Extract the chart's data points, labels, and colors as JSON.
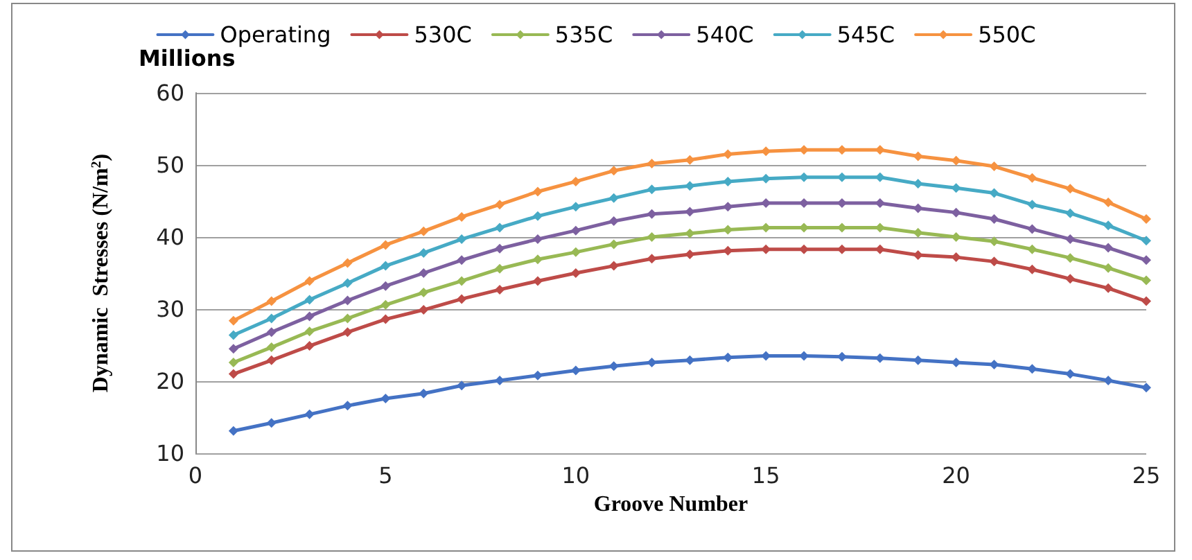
{
  "chart_data": {
    "type": "line",
    "xlabel": "Groove Number",
    "ylabel": "Dynamic  Stresses (N/m$^{2}$)",
    "annotations": [
      "Millions"
    ],
    "x": [
      1,
      2,
      3,
      4,
      5,
      6,
      7,
      8,
      9,
      10,
      11,
      12,
      13,
      14,
      15,
      16,
      17,
      18,
      19,
      20,
      21,
      22,
      23,
      24,
      25
    ],
    "xlim": [
      0,
      25
    ],
    "xticks": [
      0,
      5,
      10,
      15,
      20,
      25
    ],
    "ylim": [
      10,
      60
    ],
    "yticks": [
      10,
      20,
      30,
      40,
      50,
      60
    ],
    "grid": "y",
    "legend": "top",
    "marker": "diamond",
    "line_style": "solid",
    "series": [
      {
        "name": "Operating",
        "color": "#4472c4",
        "values": [
          13.1,
          14.2,
          15.4,
          16.6,
          17.6,
          18.3,
          19.4,
          20.1,
          20.8,
          21.5,
          22.1,
          22.6,
          22.9,
          23.3,
          23.5,
          23.5,
          23.4,
          23.2,
          22.9,
          22.6,
          22.3,
          21.7,
          21.0,
          20.1,
          19.1
        ]
      },
      {
        "name": "530C",
        "color": "#be4b48",
        "values": [
          21.0,
          22.9,
          24.9,
          26.8,
          28.6,
          29.9,
          31.4,
          32.7,
          33.9,
          35.0,
          36.0,
          37.0,
          37.6,
          38.1,
          38.3,
          38.3,
          38.3,
          38.3,
          37.5,
          37.2,
          36.6,
          35.5,
          34.2,
          32.9,
          31.1
        ]
      },
      {
        "name": "535C",
        "color": "#98b954",
        "values": [
          22.6,
          24.7,
          26.9,
          28.7,
          30.6,
          32.3,
          33.9,
          35.6,
          36.9,
          37.9,
          39.0,
          40.0,
          40.5,
          41.0,
          41.3,
          41.3,
          41.3,
          41.3,
          40.6,
          40.0,
          39.4,
          38.3,
          37.1,
          35.7,
          34.0
        ]
      },
      {
        "name": "540C",
        "color": "#7d60a0",
        "values": [
          24.5,
          26.8,
          29.0,
          31.2,
          33.2,
          35.0,
          36.8,
          38.4,
          39.7,
          40.9,
          42.2,
          43.2,
          43.5,
          44.2,
          44.7,
          44.7,
          44.7,
          44.7,
          44.0,
          43.4,
          42.5,
          41.1,
          39.7,
          38.5,
          36.8
        ]
      },
      {
        "name": "545C",
        "color": "#46aac5",
        "values": [
          26.4,
          28.7,
          31.3,
          33.6,
          36.0,
          37.8,
          39.7,
          41.3,
          42.9,
          44.2,
          45.4,
          46.6,
          47.1,
          47.7,
          48.1,
          48.3,
          48.3,
          48.3,
          47.4,
          46.8,
          46.1,
          44.5,
          43.3,
          41.6,
          39.5
        ]
      },
      {
        "name": "550C",
        "color": "#f69240",
        "values": [
          28.4,
          31.1,
          33.9,
          36.4,
          38.9,
          40.8,
          42.8,
          44.5,
          46.3,
          47.7,
          49.2,
          50.2,
          50.7,
          51.5,
          51.9,
          52.1,
          52.1,
          52.1,
          51.2,
          50.6,
          49.8,
          48.2,
          46.7,
          44.8,
          42.5
        ]
      }
    ]
  }
}
